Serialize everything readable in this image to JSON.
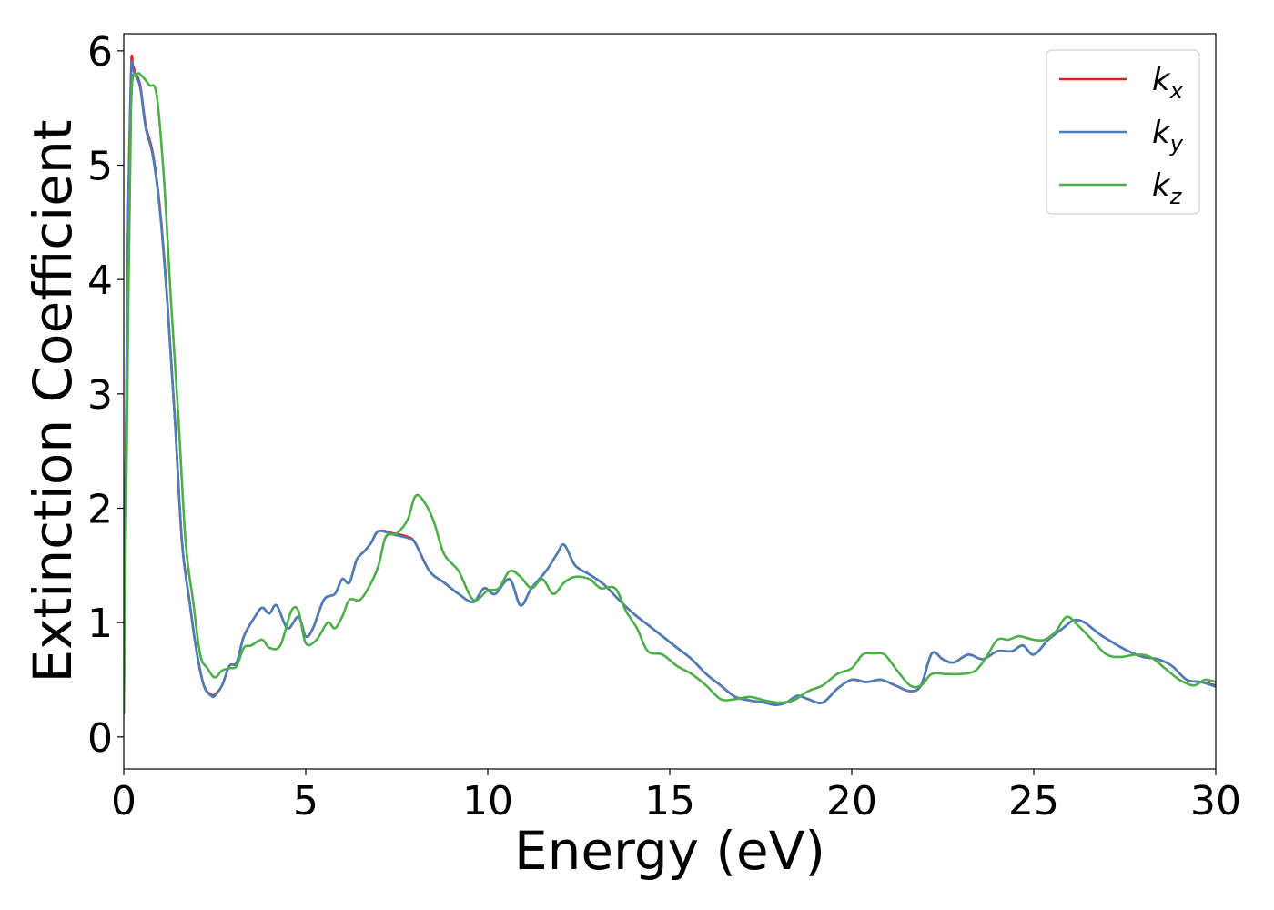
{
  "chart_data": {
    "type": "line",
    "title": "",
    "xlabel": "Energy (eV)",
    "ylabel": "Extinction Coefficient",
    "xlim": [
      0,
      30
    ],
    "ylim": [
      -0.28,
      6.15
    ],
    "xticks": [
      0,
      5,
      10,
      15,
      20,
      25,
      30
    ],
    "yticks": [
      0,
      1,
      2,
      3,
      4,
      5,
      6
    ],
    "grid": false,
    "legend_position": "top-right",
    "series": [
      {
        "name": "k_x",
        "label_main": "k",
        "label_sub": "x",
        "color": "#e41a1c",
        "x": [
          0,
          0.1,
          0.2,
          0.25,
          0.3,
          0.45,
          0.6,
          0.8,
          1.0,
          1.2,
          1.4,
          1.6,
          1.8,
          2.0,
          2.2,
          2.4,
          2.5,
          2.7,
          2.9,
          3.1,
          3.3,
          3.6,
          3.8,
          4.0,
          4.2,
          4.5,
          4.8,
          5.0,
          5.2,
          5.5,
          5.8,
          6.0,
          6.2,
          6.4,
          6.6,
          6.8,
          7.0,
          7.4,
          7.8,
          8.0,
          8.4,
          8.8,
          9.2,
          9.6,
          9.9,
          10.2,
          10.6,
          10.9,
          11.2,
          11.6,
          11.9,
          12.1,
          12.4,
          12.8,
          13.2,
          13.6,
          14.0,
          14.4,
          14.8,
          15.2,
          15.6,
          16.0,
          16.4,
          16.8,
          17.2,
          17.6,
          17.9,
          18.2,
          18.5,
          18.8,
          19.2,
          19.6,
          20.0,
          20.4,
          20.8,
          21.2,
          21.6,
          21.9,
          22.2,
          22.5,
          22.8,
          23.2,
          23.6,
          24.0,
          24.4,
          24.7,
          25.0,
          25.4,
          25.8,
          26.1,
          26.4,
          26.8,
          27.2,
          27.6,
          28.0,
          28.4,
          28.8,
          29.2,
          29.6,
          30.0
        ],
        "y": [
          0.2,
          4.0,
          5.8,
          5.87,
          5.82,
          5.7,
          5.35,
          5.1,
          4.6,
          3.8,
          2.8,
          1.7,
          1.2,
          0.75,
          0.45,
          0.37,
          0.37,
          0.45,
          0.62,
          0.65,
          0.88,
          1.05,
          1.13,
          1.08,
          1.15,
          0.95,
          1.05,
          0.88,
          0.95,
          1.2,
          1.25,
          1.38,
          1.35,
          1.55,
          1.62,
          1.7,
          1.8,
          1.78,
          1.75,
          1.7,
          1.45,
          1.35,
          1.25,
          1.18,
          1.3,
          1.25,
          1.38,
          1.15,
          1.3,
          1.45,
          1.6,
          1.68,
          1.5,
          1.42,
          1.33,
          1.2,
          1.08,
          0.98,
          0.88,
          0.78,
          0.68,
          0.55,
          0.45,
          0.35,
          0.32,
          0.3,
          0.28,
          0.3,
          0.36,
          0.33,
          0.3,
          0.42,
          0.5,
          0.48,
          0.5,
          0.45,
          0.4,
          0.45,
          0.73,
          0.68,
          0.65,
          0.72,
          0.68,
          0.75,
          0.75,
          0.8,
          0.72,
          0.85,
          0.95,
          1.02,
          1.0,
          0.9,
          0.82,
          0.75,
          0.7,
          0.68,
          0.62,
          0.5,
          0.48,
          0.45
        ]
      },
      {
        "name": "k_y",
        "label_main": "k",
        "label_sub": "y",
        "color": "#4a7eb8",
        "x": [
          0,
          0.1,
          0.2,
          0.25,
          0.3,
          0.45,
          0.6,
          0.8,
          1.0,
          1.2,
          1.4,
          1.6,
          1.8,
          2.0,
          2.2,
          2.4,
          2.5,
          2.7,
          2.9,
          3.1,
          3.3,
          3.6,
          3.8,
          4.0,
          4.2,
          4.5,
          4.8,
          5.0,
          5.2,
          5.5,
          5.8,
          6.0,
          6.2,
          6.4,
          6.6,
          6.8,
          7.0,
          7.4,
          7.8,
          8.0,
          8.4,
          8.8,
          9.2,
          9.6,
          9.9,
          10.2,
          10.6,
          10.9,
          11.2,
          11.6,
          11.9,
          12.1,
          12.4,
          12.8,
          13.2,
          13.6,
          14.0,
          14.4,
          14.8,
          15.2,
          15.6,
          16.0,
          16.4,
          16.8,
          17.2,
          17.6,
          17.9,
          18.2,
          18.5,
          18.8,
          19.2,
          19.6,
          20.0,
          20.4,
          20.8,
          21.2,
          21.6,
          21.9,
          22.2,
          22.5,
          22.8,
          23.2,
          23.6,
          24.0,
          24.4,
          24.7,
          25.0,
          25.4,
          25.8,
          26.1,
          26.4,
          26.8,
          27.2,
          27.6,
          28.0,
          28.4,
          28.8,
          29.2,
          29.6,
          30.0
        ],
        "y": [
          0.2,
          4.0,
          5.75,
          5.83,
          5.8,
          5.68,
          5.33,
          5.08,
          4.58,
          3.78,
          2.8,
          1.7,
          1.2,
          0.75,
          0.45,
          0.36,
          0.36,
          0.45,
          0.62,
          0.65,
          0.88,
          1.05,
          1.13,
          1.08,
          1.15,
          0.95,
          1.05,
          0.88,
          0.95,
          1.2,
          1.25,
          1.38,
          1.35,
          1.55,
          1.62,
          1.7,
          1.8,
          1.77,
          1.74,
          1.7,
          1.45,
          1.35,
          1.25,
          1.18,
          1.3,
          1.25,
          1.38,
          1.15,
          1.3,
          1.45,
          1.6,
          1.68,
          1.5,
          1.42,
          1.33,
          1.2,
          1.08,
          0.98,
          0.88,
          0.78,
          0.68,
          0.55,
          0.45,
          0.35,
          0.32,
          0.3,
          0.28,
          0.3,
          0.36,
          0.33,
          0.3,
          0.42,
          0.5,
          0.48,
          0.5,
          0.45,
          0.4,
          0.45,
          0.73,
          0.68,
          0.65,
          0.72,
          0.68,
          0.75,
          0.75,
          0.8,
          0.72,
          0.85,
          0.95,
          1.02,
          1.0,
          0.9,
          0.82,
          0.75,
          0.7,
          0.68,
          0.62,
          0.5,
          0.48,
          0.44
        ]
      },
      {
        "name": "k_z",
        "label_main": "k",
        "label_sub": "z",
        "color": "#4daf4a",
        "x": [
          0,
          0.1,
          0.2,
          0.35,
          0.5,
          0.7,
          0.9,
          1.1,
          1.3,
          1.5,
          1.7,
          1.9,
          2.1,
          2.3,
          2.5,
          2.7,
          2.9,
          3.1,
          3.3,
          3.5,
          3.8,
          4.0,
          4.3,
          4.6,
          4.8,
          5.0,
          5.3,
          5.6,
          5.8,
          6.0,
          6.2,
          6.5,
          6.8,
          7.0,
          7.2,
          7.5,
          7.8,
          8.0,
          8.2,
          8.5,
          8.8,
          9.2,
          9.6,
          10.0,
          10.3,
          10.6,
          10.9,
          11.2,
          11.5,
          11.8,
          12.1,
          12.4,
          12.8,
          13.1,
          13.5,
          13.8,
          14.1,
          14.4,
          14.8,
          15.2,
          15.6,
          16.0,
          16.4,
          16.8,
          17.2,
          17.6,
          18.0,
          18.4,
          18.8,
          19.2,
          19.6,
          20.0,
          20.3,
          20.6,
          20.9,
          21.2,
          21.6,
          21.9,
          22.2,
          22.6,
          23.0,
          23.4,
          23.7,
          24.0,
          24.3,
          24.6,
          25.0,
          25.3,
          25.6,
          25.9,
          26.2,
          26.6,
          27.0,
          27.4,
          27.8,
          28.2,
          28.6,
          29.0,
          29.4,
          29.7,
          30.0
        ],
        "y": [
          0.2,
          3.0,
          5.5,
          5.78,
          5.78,
          5.7,
          5.62,
          4.9,
          3.8,
          2.8,
          1.7,
          1.2,
          0.72,
          0.6,
          0.52,
          0.58,
          0.6,
          0.62,
          0.78,
          0.8,
          0.85,
          0.78,
          0.8,
          1.1,
          1.1,
          0.82,
          0.85,
          1.0,
          0.95,
          1.05,
          1.2,
          1.2,
          1.35,
          1.5,
          1.75,
          1.78,
          1.9,
          2.1,
          2.08,
          1.9,
          1.6,
          1.45,
          1.2,
          1.28,
          1.3,
          1.45,
          1.4,
          1.3,
          1.38,
          1.25,
          1.35,
          1.4,
          1.38,
          1.3,
          1.3,
          1.1,
          0.95,
          0.75,
          0.72,
          0.62,
          0.55,
          0.45,
          0.33,
          0.33,
          0.35,
          0.32,
          0.3,
          0.32,
          0.4,
          0.45,
          0.55,
          0.6,
          0.72,
          0.73,
          0.72,
          0.6,
          0.45,
          0.45,
          0.55,
          0.55,
          0.55,
          0.58,
          0.7,
          0.85,
          0.85,
          0.88,
          0.85,
          0.85,
          0.92,
          1.05,
          0.98,
          0.85,
          0.72,
          0.7,
          0.72,
          0.7,
          0.6,
          0.5,
          0.45,
          0.5,
          0.48
        ]
      }
    ]
  }
}
